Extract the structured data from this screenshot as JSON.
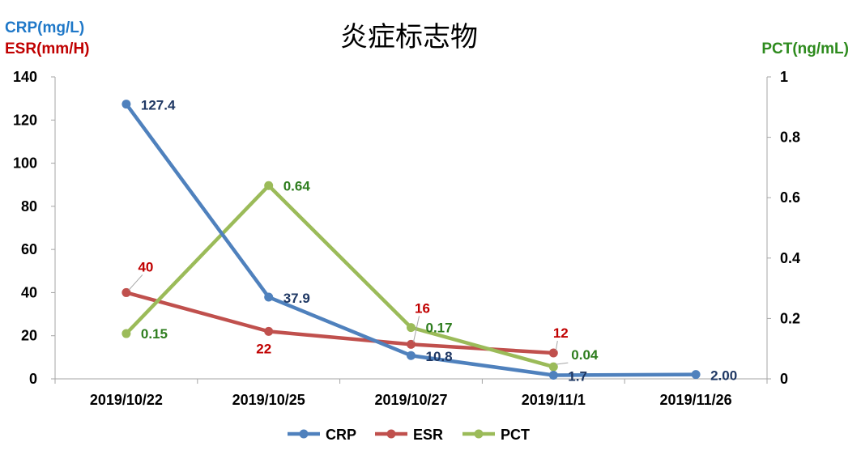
{
  "chart_data": {
    "type": "line",
    "title": "炎症标志物",
    "ylabel_left": [
      "CRP(mg/L)",
      "ESR(mm/H)"
    ],
    "ylabel_right": "PCT(ng/mL)",
    "categories": [
      "2019/10/22",
      "2019/10/25",
      "2019/10/27",
      "2019/11/1",
      "2019/11/26"
    ],
    "ylim_left": [
      0,
      140
    ],
    "yticks_left": [
      "0",
      "20",
      "40",
      "60",
      "80",
      "100",
      "120",
      "140"
    ],
    "ylim_right": [
      0,
      1
    ],
    "yticks_right": [
      "0",
      "0.2",
      "0.4",
      "0.6",
      "0.8",
      "1"
    ],
    "legend_position": "bottom",
    "series": [
      {
        "name": "CRP",
        "axis": "left",
        "color": "#4f81bd",
        "label_color": "#1f3864",
        "values": [
          127.4,
          37.9,
          10.8,
          1.7,
          2.0
        ],
        "labels": [
          "127.4",
          "37.9",
          "10.8",
          "1.7",
          "2.00"
        ]
      },
      {
        "name": "ESR",
        "axis": "left",
        "color": "#c0504d",
        "label_color": "#c00000",
        "values": [
          40,
          22,
          16,
          12,
          null
        ],
        "labels": [
          "40",
          "22",
          "16",
          "12",
          null
        ]
      },
      {
        "name": "PCT",
        "axis": "right",
        "color": "#9bbb59",
        "label_color": "#2e7d1e",
        "values": [
          0.15,
          0.64,
          0.17,
          0.04,
          null
        ],
        "labels": [
          "0.15",
          "0.64",
          "0.17",
          "0.04",
          null
        ]
      }
    ]
  }
}
